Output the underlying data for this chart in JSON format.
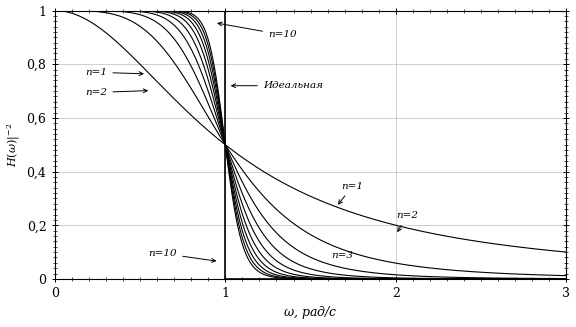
{
  "xlim": [
    0,
    3
  ],
  "ylim": [
    0,
    1
  ],
  "xticks": [
    0,
    1,
    2,
    3
  ],
  "yticks": [
    0.0,
    0.2,
    0.4,
    0.6,
    0.8,
    1.0
  ],
  "ytick_labels": [
    "0",
    "0,2",
    "0,4",
    "0,6",
    "0,8",
    "1"
  ],
  "xtick_labels": [
    "0",
    "1",
    "2",
    "3"
  ],
  "orders": [
    1,
    2,
    3,
    4,
    5,
    6,
    7,
    8,
    9,
    10
  ],
  "background_color": "#ffffff",
  "line_color": "#000000",
  "grid_color": "#aaaaaa",
  "xlabel": "ω, рад/с",
  "ylabel": "H(ω)|⁻²"
}
